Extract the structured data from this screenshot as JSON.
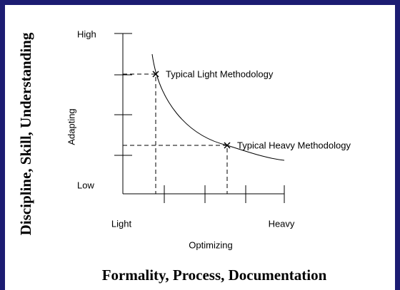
{
  "outer_axes": {
    "y_label": "Discipline, Skill, Understanding",
    "x_label": "Formality, Process, Documentation"
  },
  "inner_axes": {
    "y_label": "Adapting",
    "y_high": "High",
    "y_low": "Low",
    "x_label": "Optimizing",
    "x_low": "Light",
    "x_high": "Heavy"
  },
  "points": [
    {
      "label": "Typical Light Methodology"
    },
    {
      "label": "Typical Heavy Methodology"
    }
  ]
}
